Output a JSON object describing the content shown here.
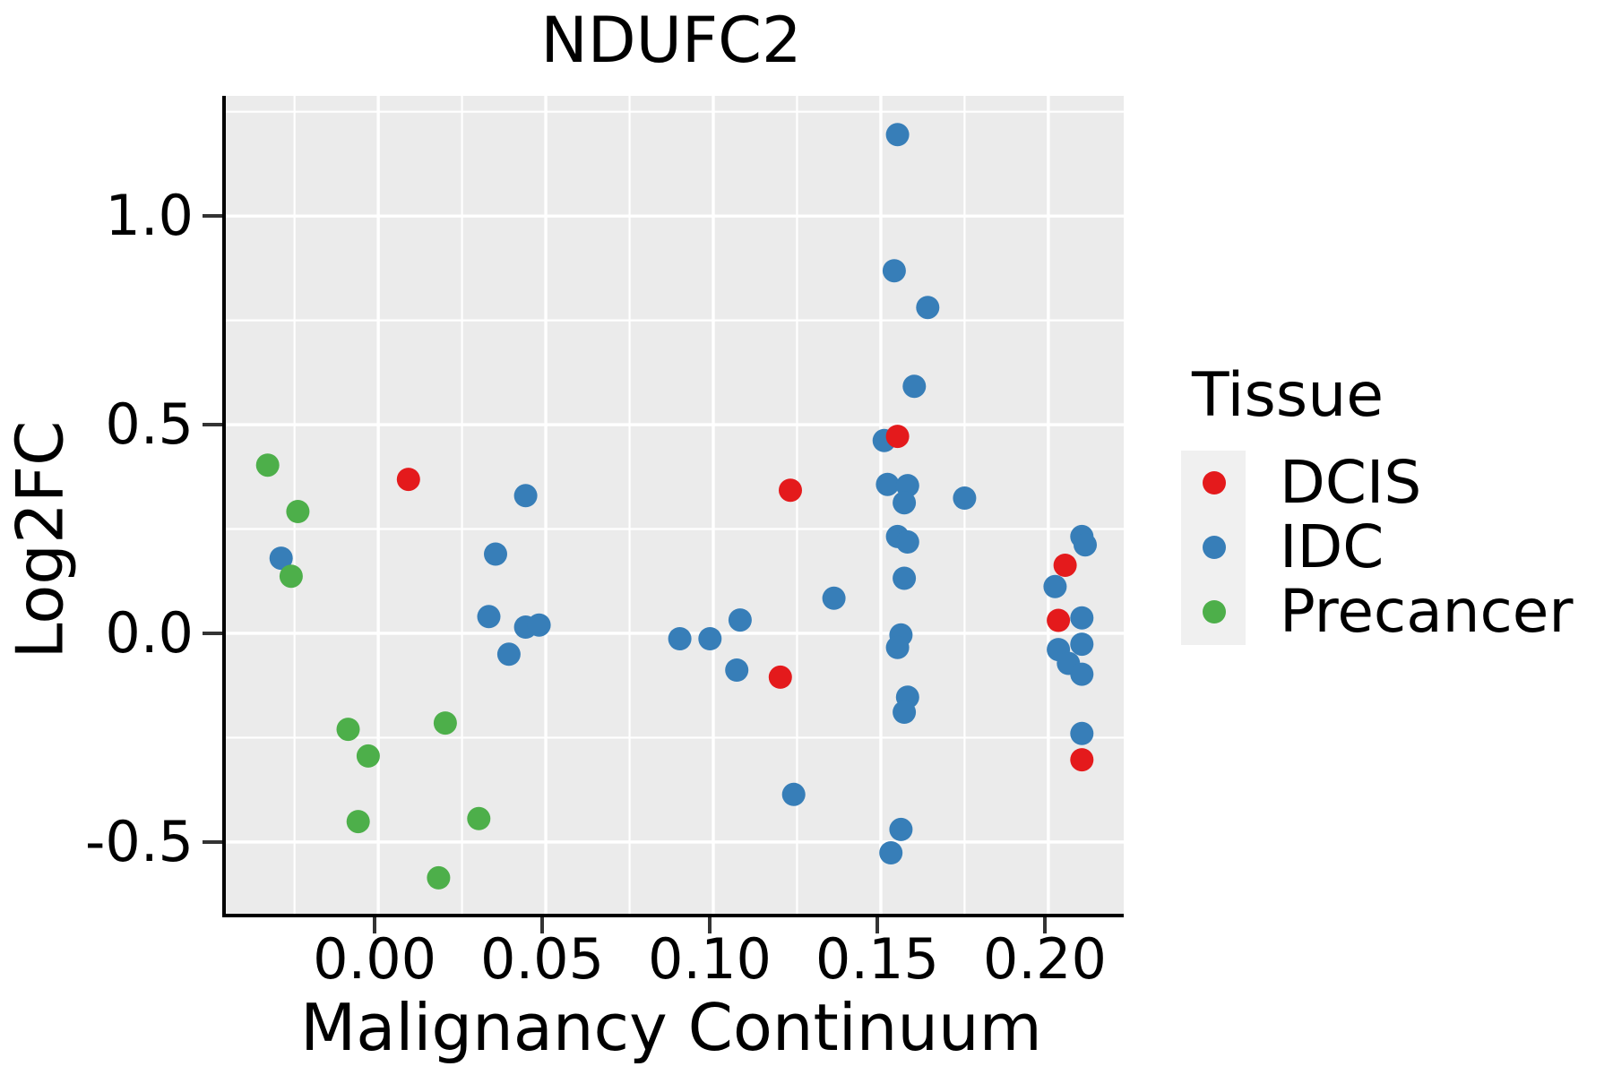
{
  "figure": {
    "title": "NDUFC2"
  },
  "axes": {
    "x": {
      "label": "Malignancy Continuum",
      "tick_labels": [
        "0.00",
        "0.05",
        "0.10",
        "0.15",
        "0.20"
      ],
      "tick_values": [
        0.0,
        0.05,
        0.1,
        0.15,
        0.2
      ],
      "minor_ticks": [
        -0.025,
        0.025,
        0.075,
        0.125,
        0.175
      ],
      "range": [
        -0.0455,
        0.2225
      ]
    },
    "y": {
      "label": "Log2FC",
      "tick_labels": [
        "-0.5",
        "0.0",
        "0.5",
        "1.0"
      ],
      "tick_values": [
        -0.5,
        0.0,
        0.5,
        1.0
      ],
      "minor_ticks": [
        -0.25,
        0.25,
        0.75,
        1.25
      ],
      "range": [
        -0.672,
        1.288
      ]
    }
  },
  "legend": {
    "title": "Tissue",
    "entries": [
      {
        "label": "DCIS",
        "color": "#e41a1c"
      },
      {
        "label": "IDC",
        "color": "#377eb8"
      },
      {
        "label": "Precancer",
        "color": "#4daf4a"
      }
    ]
  },
  "style": {
    "plot_bg": "#ebebeb",
    "grid_color": "#ffffff",
    "major_grid_width": 3.4,
    "minor_grid_width": 2.2,
    "spine_color": "#000000",
    "tick_color": "#333333",
    "point_radius": 13
  },
  "chart_data": {
    "type": "scatter",
    "title": "NDUFC2",
    "xlabel": "Malignancy Continuum",
    "ylabel": "Log2FC",
    "xlim": [
      -0.0455,
      0.2225
    ],
    "ylim": [
      -0.672,
      1.288
    ],
    "grid": true,
    "legend_position": "right",
    "legend_title": "Tissue",
    "series": [
      {
        "name": "IDC",
        "color": "#377eb8",
        "points": [
          [
            -0.029,
            0.18
          ],
          [
            0.044,
            0.33
          ],
          [
            0.035,
            0.19
          ],
          [
            0.033,
            0.04
          ],
          [
            0.044,
            0.015
          ],
          [
            0.048,
            0.02
          ],
          [
            0.039,
            -0.05
          ],
          [
            0.09,
            -0.013
          ],
          [
            0.099,
            -0.013
          ],
          [
            0.108,
            0.032
          ],
          [
            0.107,
            -0.088
          ],
          [
            0.136,
            0.084
          ],
          [
            0.124,
            -0.386
          ],
          [
            0.155,
            1.195
          ],
          [
            0.154,
            0.869
          ],
          [
            0.164,
            0.781
          ],
          [
            0.16,
            0.592
          ],
          [
            0.151,
            0.462
          ],
          [
            0.152,
            0.357
          ],
          [
            0.158,
            0.354
          ],
          [
            0.157,
            0.313
          ],
          [
            0.155,
            0.232
          ],
          [
            0.158,
            0.219
          ],
          [
            0.157,
            0.132
          ],
          [
            0.156,
            -0.004
          ],
          [
            0.155,
            -0.034
          ],
          [
            0.158,
            -0.153
          ],
          [
            0.157,
            -0.189
          ],
          [
            0.156,
            -0.47
          ],
          [
            0.153,
            -0.526
          ],
          [
            0.175,
            0.324
          ],
          [
            0.21,
            0.232
          ],
          [
            0.211,
            0.212
          ],
          [
            0.202,
            0.112
          ],
          [
            0.21,
            0.037
          ],
          [
            0.21,
            -0.026
          ],
          [
            0.203,
            -0.039
          ],
          [
            0.206,
            -0.072
          ],
          [
            0.21,
            -0.098
          ],
          [
            0.21,
            -0.24
          ]
        ]
      },
      {
        "name": "Precancer",
        "color": "#4daf4a",
        "points": [
          [
            -0.033,
            0.403
          ],
          [
            -0.024,
            0.292
          ],
          [
            -0.026,
            0.137
          ],
          [
            -0.009,
            -0.23
          ],
          [
            -0.003,
            -0.294
          ],
          [
            -0.006,
            -0.451
          ],
          [
            0.02,
            -0.215
          ],
          [
            0.03,
            -0.444
          ],
          [
            0.018,
            -0.586
          ]
        ]
      },
      {
        "name": "DCIS",
        "color": "#e41a1c",
        "points": [
          [
            0.009,
            0.369
          ],
          [
            0.123,
            0.343
          ],
          [
            0.12,
            -0.105
          ],
          [
            0.155,
            0.472
          ],
          [
            0.205,
            0.163
          ],
          [
            0.203,
            0.031
          ],
          [
            0.21,
            -0.303
          ]
        ]
      }
    ]
  }
}
